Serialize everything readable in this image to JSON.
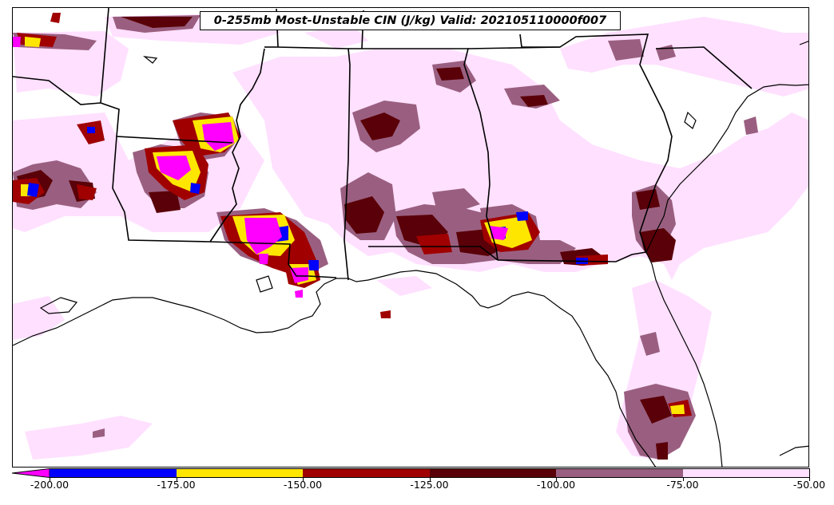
{
  "title": "0-255mb Most-Unstable CIN (J/kg) Valid: 202105110000f007",
  "colorbar": {
    "ticks": [
      "-200.00",
      "-175.00",
      "-150.00",
      "-125.00",
      "-100.00",
      "-75.00",
      "-50.00"
    ],
    "bins": [
      {
        "range": "< -200",
        "color": "#ff00ff"
      },
      {
        "range": "-200 to -175",
        "color": "#0000ff"
      },
      {
        "range": "-175 to -150",
        "color": "#ffe600"
      },
      {
        "range": "-150 to -125",
        "color": "#a00000"
      },
      {
        "range": "-125 to -100",
        "color": "#5a0008"
      },
      {
        "range": "-100 to -75",
        "color": "#9a5f80"
      },
      {
        "range": "-75 to -50",
        "color": "#ffe0ff"
      }
    ]
  },
  "colors": {
    "magenta": "#ff00ff",
    "blue": "#0000ff",
    "yellow": "#ffe600",
    "red": "#a00000",
    "darkred": "#5a0008",
    "mauve": "#9a5f80",
    "lightpink": "#ffe0ff",
    "background": "#ffffff",
    "borders": "#000000"
  }
}
